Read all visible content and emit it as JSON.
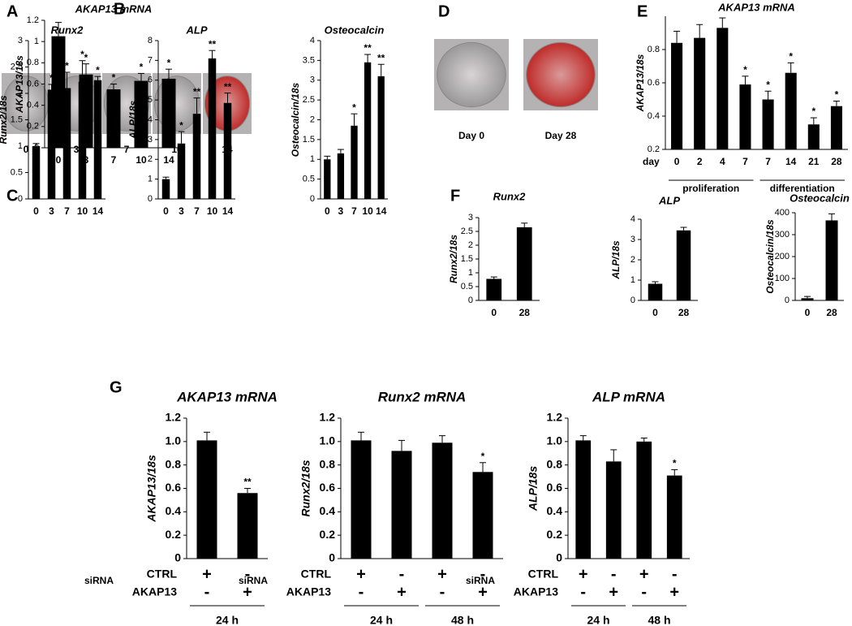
{
  "images": [
    {
      "panel": "A",
      "labels": [
        "0",
        "3",
        "7",
        "10",
        "14"
      ]
    },
    {
      "panel": "D",
      "labels": [
        "Day 0",
        "Day 28"
      ]
    }
  ],
  "chart_data": [
    {
      "type": "bar",
      "panel": "B",
      "title": "AKAP13 mRNA",
      "y_label": "AKAP13/18s",
      "categories": [
        "0",
        "3",
        "7",
        "10",
        "14"
      ],
      "values": [
        1.05,
        0.69,
        0.55,
        0.63,
        0.65
      ],
      "errors": [
        0.13,
        0.1,
        0.05,
        0.07,
        0.09
      ],
      "annotations": [
        null,
        "*",
        "*",
        "*",
        "*"
      ],
      "color": "#000000",
      "ylim": [
        0,
        1.2
      ],
      "yticks": [
        0,
        0.2,
        0.4,
        0.6,
        0.8,
        1,
        1.2
      ]
    },
    {
      "type": "bar",
      "panel": "C",
      "title": "Runx2",
      "y_label": "Runx2/18s",
      "categories": [
        "0",
        "3",
        "7",
        "10",
        "14"
      ],
      "values": [
        1.0,
        2.07,
        2.1,
        2.22,
        2.25
      ],
      "errors": [
        0.05,
        0.1,
        0.3,
        0.4,
        0.07
      ],
      "annotations": [
        null,
        "*",
        "*",
        "*",
        "*"
      ],
      "color": "#000000",
      "ylim": [
        0,
        3
      ],
      "yticks": [
        0,
        0.5,
        1,
        1.5,
        2,
        2.5,
        3
      ]
    },
    {
      "type": "bar",
      "title": "ALP",
      "y_label": "ALP/18s",
      "categories": [
        "0",
        "3",
        "7",
        "10",
        "14"
      ],
      "values": [
        1.0,
        2.8,
        4.3,
        7.1,
        4.85
      ],
      "errors": [
        0.1,
        0.6,
        0.8,
        0.4,
        0.5
      ],
      "annotations": [
        null,
        "*",
        "**",
        "**",
        "**"
      ],
      "color": "#000000",
      "ylim": [
        0,
        8
      ],
      "yticks": [
        0,
        1,
        2,
        3,
        4,
        5,
        6,
        7,
        8
      ]
    },
    {
      "type": "bar",
      "title": "Osteocalcin",
      "y_label": "Osteocalcin/18s",
      "categories": [
        "0",
        "3",
        "7",
        "10",
        "14"
      ],
      "values": [
        1.0,
        1.15,
        1.85,
        3.45,
        3.1
      ],
      "errors": [
        0.08,
        0.1,
        0.3,
        0.2,
        0.3
      ],
      "annotations": [
        null,
        null,
        "*",
        "**",
        "**"
      ],
      "color": "#000000",
      "ylim": [
        0,
        4
      ],
      "yticks": [
        0,
        0.5,
        1,
        1.5,
        2,
        2.5,
        3,
        3.5,
        4
      ]
    },
    {
      "type": "bar",
      "panel": "E",
      "title": "AKAP13 mRNA",
      "y_label": "AKAP13/18s",
      "x_label": "day",
      "categories": [
        "0",
        "2",
        "4",
        "7",
        "7",
        "14",
        "21",
        "28"
      ],
      "values": [
        0.84,
        0.87,
        0.93,
        0.59,
        0.5,
        0.66,
        0.35,
        0.46
      ],
      "errors": [
        0.07,
        0.08,
        0.06,
        0.05,
        0.05,
        0.06,
        0.04,
        0.03
      ],
      "annotations": [
        null,
        null,
        null,
        "*",
        "*",
        "*",
        "*",
        "*"
      ],
      "groups": [
        "proliferation",
        "differentiation"
      ],
      "color": "#000000",
      "ylim": [
        0.2,
        1.0
      ],
      "yticks": [
        0.2,
        0.4,
        0.6,
        0.8
      ]
    },
    {
      "type": "bar",
      "panel": "F",
      "title": "Runx2",
      "y_label": "Runx2/18s",
      "categories": [
        "0",
        "28"
      ],
      "values": [
        0.78,
        2.65
      ],
      "errors": [
        0.07,
        0.15
      ],
      "color": "#000000",
      "ylim": [
        0,
        3
      ],
      "yticks": [
        0,
        0.5,
        1,
        1.5,
        2,
        2.5,
        3
      ]
    },
    {
      "type": "bar",
      "title": "ALP",
      "y_label": "ALP/18s",
      "categories": [
        "0",
        "28"
      ],
      "values": [
        0.82,
        3.45
      ],
      "errors": [
        0.1,
        0.15
      ],
      "color": "#000000",
      "ylim": [
        0,
        4
      ],
      "yticks": [
        0,
        1,
        2,
        3,
        4
      ]
    },
    {
      "type": "bar",
      "title": "Osteocalcin",
      "y_label": "Osteocalcin/18s",
      "categories": [
        "0",
        "28"
      ],
      "values": [
        10,
        365
      ],
      "errors": [
        8,
        30
      ],
      "color": "#000000",
      "ylim": [
        0,
        400
      ],
      "yticks": [
        0,
        100,
        200,
        300,
        400
      ]
    },
    {
      "type": "bar",
      "panel": "G",
      "title": "AKAP13 mRNA",
      "y_label": "AKAP13/18s",
      "values": [
        1.01,
        0.56
      ],
      "errors": [
        0.07,
        0.04
      ],
      "annotations": [
        null,
        "**"
      ],
      "row_title": "siRNA",
      "rows": [
        {
          "name": "CTRL",
          "values": [
            "+",
            "-"
          ]
        },
        {
          "name": "AKAP13",
          "values": [
            "-",
            "+"
          ]
        }
      ],
      "groups": [
        "24 h"
      ],
      "color": "#000000",
      "ylim": [
        0,
        1.2
      ],
      "yticks": [
        0,
        0.2,
        0.4,
        0.6,
        0.8,
        {
          "value": 1,
          "label": "1.0"
        },
        1.2
      ]
    },
    {
      "type": "bar",
      "title": "Runx2 mRNA",
      "y_label": "Runx2/18s",
      "values": [
        1.01,
        0.92,
        0.99,
        0.74
      ],
      "errors": [
        0.07,
        0.09,
        0.06,
        0.08
      ],
      "annotations": [
        null,
        null,
        null,
        "*"
      ],
      "row_title": "siRNA",
      "rows": [
        {
          "name": "CTRL",
          "values": [
            "+",
            "-",
            "+",
            "-"
          ]
        },
        {
          "name": "AKAP13",
          "values": [
            "-",
            "+",
            "-",
            "+"
          ]
        }
      ],
      "groups": [
        "24 h",
        "48 h"
      ],
      "color": "#000000",
      "ylim": [
        0,
        1.2
      ],
      "yticks": [
        0,
        0.2,
        0.4,
        0.6,
        0.8,
        {
          "value": 1,
          "label": "1.0"
        },
        1.2
      ]
    },
    {
      "type": "bar",
      "title": "ALP mRNA",
      "y_label": "ALP/18s",
      "values": [
        1.01,
        0.83,
        1.0,
        0.71
      ],
      "errors": [
        0.04,
        0.1,
        0.03,
        0.05
      ],
      "annotations": [
        null,
        null,
        null,
        "*"
      ],
      "row_title": "siRNA",
      "rows": [
        {
          "name": "CTRL",
          "values": [
            "+",
            "-",
            "+",
            "-"
          ]
        },
        {
          "name": "AKAP13",
          "values": [
            "-",
            "+",
            "-",
            "+"
          ]
        }
      ],
      "groups": [
        "24 h",
        "48 h"
      ],
      "color": "#000000",
      "ylim": [
        0,
        1.2
      ],
      "yticks": [
        0,
        0.2,
        0.4,
        0.6,
        0.8,
        {
          "value": 1,
          "label": "1.0"
        },
        1.2
      ]
    }
  ]
}
